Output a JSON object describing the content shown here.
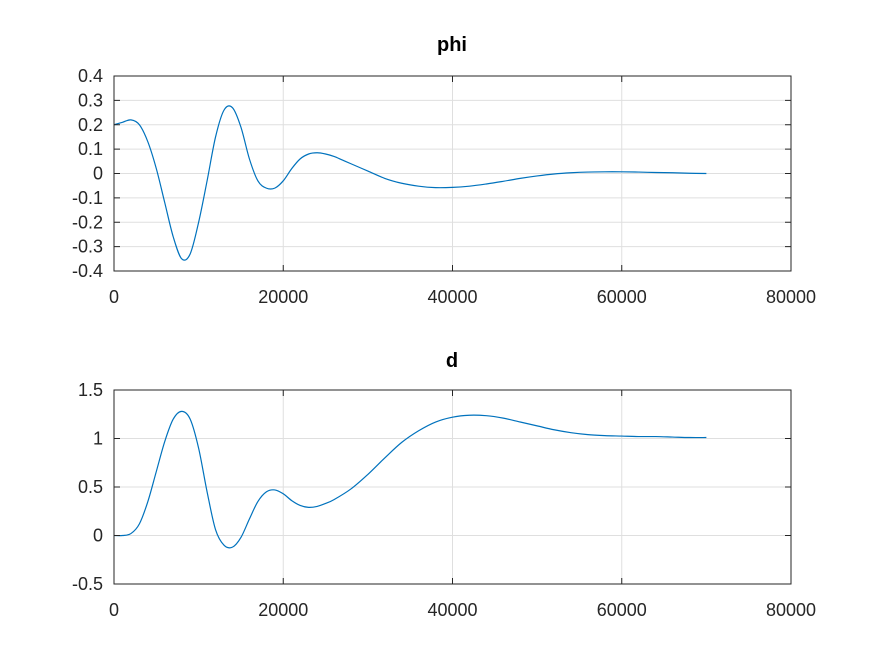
{
  "chart_data": [
    {
      "type": "line",
      "title": "phi",
      "xlabel": "",
      "ylabel": "",
      "xlim": [
        0,
        80000
      ],
      "ylim": [
        -0.4,
        0.4
      ],
      "xticks": [
        "0",
        "20000",
        "40000",
        "60000",
        "80000"
      ],
      "yticks": [
        "0.4",
        "0.3",
        "0.2",
        "0.1",
        "0",
        "-0.1",
        "-0.2",
        "-0.3",
        "-0.4"
      ],
      "grid": true,
      "color": "#0072bd",
      "series": [
        {
          "x": [
            0,
            1000,
            2000,
            3000,
            4000,
            5000,
            6000,
            7000,
            8000,
            9000,
            10000,
            11000,
            12000,
            13000,
            14000,
            15000,
            16000,
            17000,
            18000,
            19000,
            20000,
            21000,
            22000,
            23000,
            24000,
            25000,
            26000,
            27000,
            28000,
            30000,
            32000,
            34000,
            36000,
            38000,
            40000,
            42000,
            44000,
            46000,
            48000,
            50000,
            52000,
            54000,
            56000,
            58000,
            60000,
            62000,
            64000,
            66000,
            68000,
            70000
          ],
          "values": [
            0.2,
            0.21,
            0.22,
            0.2,
            0.13,
            0.02,
            -0.12,
            -0.26,
            -0.35,
            -0.33,
            -0.2,
            -0.03,
            0.15,
            0.26,
            0.27,
            0.19,
            0.06,
            -0.03,
            -0.06,
            -0.06,
            -0.03,
            0.02,
            0.06,
            0.08,
            0.085,
            0.08,
            0.07,
            0.055,
            0.04,
            0.01,
            -0.02,
            -0.04,
            -0.052,
            -0.058,
            -0.057,
            -0.052,
            -0.043,
            -0.032,
            -0.02,
            -0.01,
            -0.002,
            0.003,
            0.006,
            0.007,
            0.007,
            0.006,
            0.004,
            0.003,
            0.001,
            0.0
          ]
        }
      ]
    },
    {
      "type": "line",
      "title": "d",
      "xlabel": "",
      "ylabel": "",
      "xlim": [
        0,
        80000
      ],
      "ylim": [
        -0.5,
        1.5
      ],
      "xticks": [
        "0",
        "20000",
        "40000",
        "60000",
        "80000"
      ],
      "yticks": [
        "1.5",
        "1",
        "0.5",
        "0",
        "-0.5"
      ],
      "grid": true,
      "color": "#0072bd",
      "series": [
        {
          "x": [
            0,
            1000,
            2000,
            3000,
            4000,
            5000,
            6000,
            7000,
            8000,
            9000,
            10000,
            11000,
            12000,
            13000,
            14000,
            15000,
            16000,
            17000,
            18000,
            19000,
            20000,
            21000,
            22000,
            23000,
            24000,
            25000,
            26000,
            28000,
            30000,
            32000,
            34000,
            36000,
            38000,
            40000,
            42000,
            44000,
            46000,
            48000,
            50000,
            52000,
            54000,
            56000,
            58000,
            60000,
            62000,
            64000,
            66000,
            68000,
            70000
          ],
          "values": [
            0.0,
            0.0,
            0.02,
            0.12,
            0.35,
            0.66,
            0.97,
            1.2,
            1.28,
            1.2,
            0.9,
            0.45,
            0.06,
            -0.1,
            -0.12,
            -0.02,
            0.17,
            0.35,
            0.45,
            0.47,
            0.43,
            0.36,
            0.31,
            0.29,
            0.3,
            0.33,
            0.37,
            0.48,
            0.63,
            0.8,
            0.96,
            1.08,
            1.17,
            1.22,
            1.24,
            1.235,
            1.21,
            1.17,
            1.13,
            1.09,
            1.06,
            1.04,
            1.03,
            1.025,
            1.02,
            1.02,
            1.015,
            1.01,
            1.01
          ]
        }
      ]
    }
  ]
}
